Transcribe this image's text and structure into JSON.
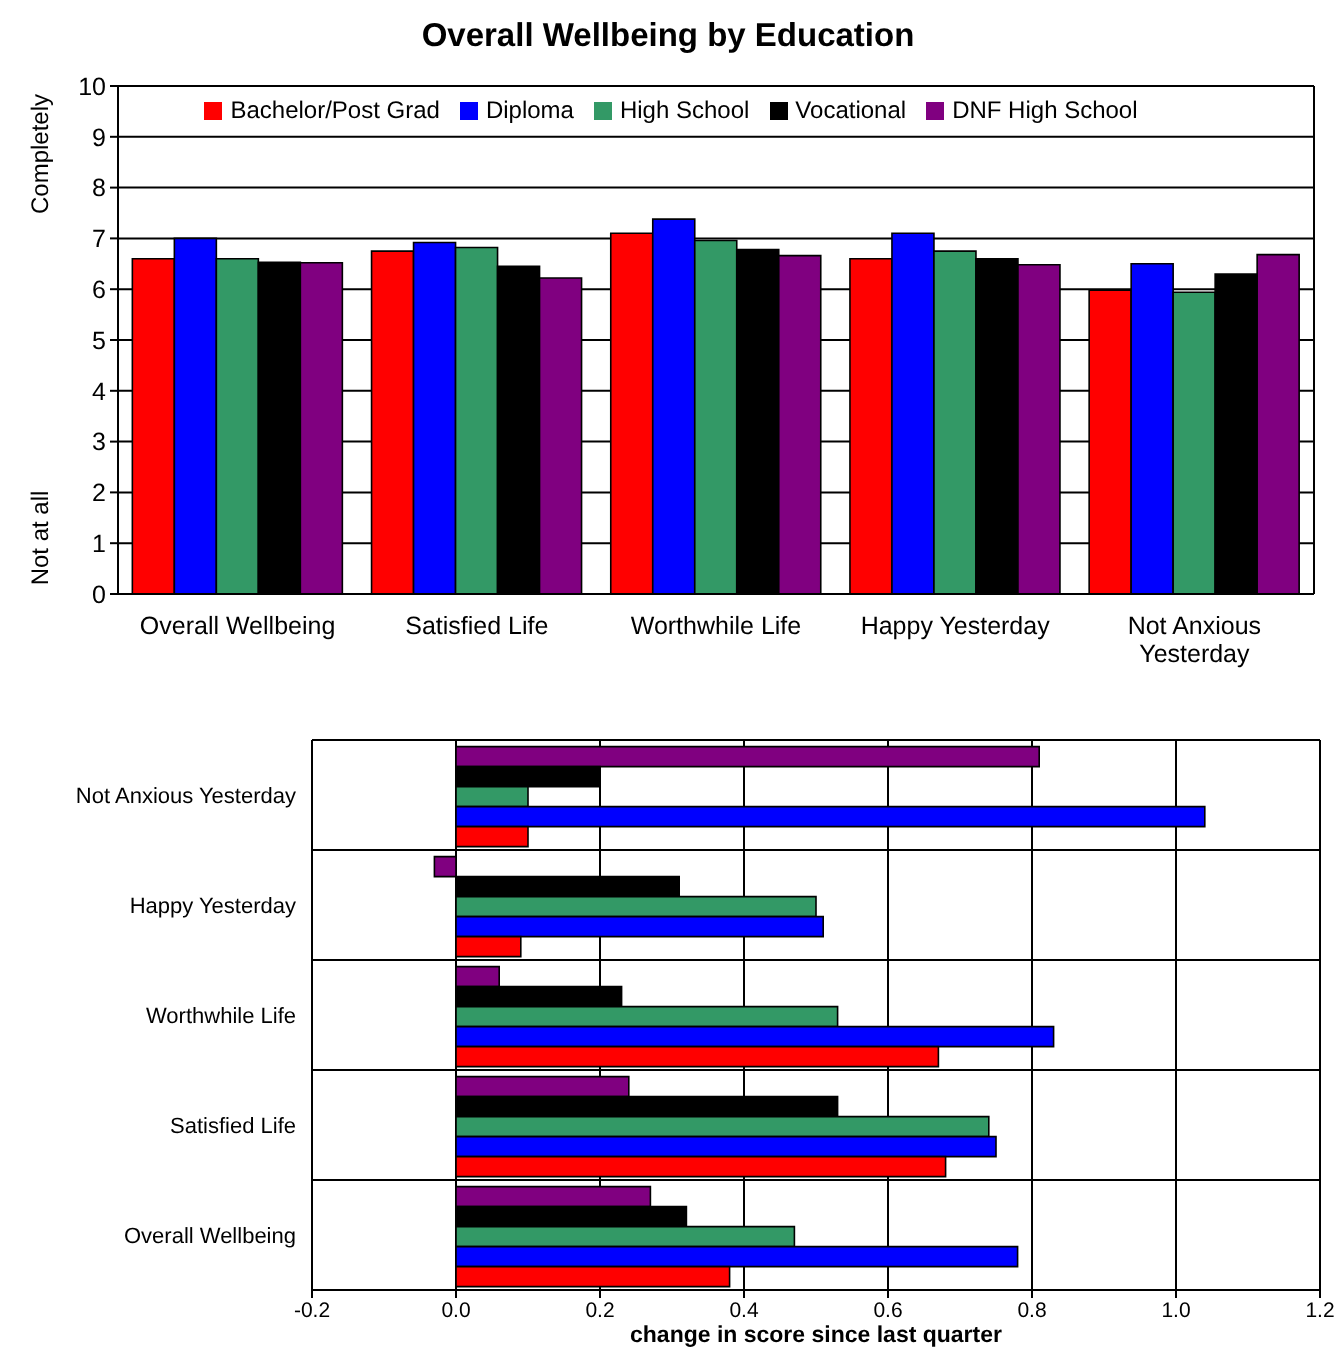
{
  "chart_data": [
    {
      "type": "bar",
      "title": "Overall Wellbeing by Education",
      "categories": [
        "Overall Wellbeing",
        "Satisfied Life",
        "Worthwhile Life",
        "Happy Yesterday",
        "Not Anxious Yesterday"
      ],
      "series": [
        {
          "name": "Bachelor/Post Grad",
          "color": "#ff0000",
          "values": [
            6.6,
            6.75,
            7.1,
            6.6,
            5.98
          ]
        },
        {
          "name": "Diploma",
          "color": "#0000ff",
          "values": [
            7.0,
            6.92,
            7.38,
            7.1,
            6.5
          ]
        },
        {
          "name": "High School",
          "color": "#339966",
          "values": [
            6.6,
            6.82,
            6.96,
            6.75,
            5.94
          ]
        },
        {
          "name": "Vocational",
          "color": "#000000",
          "values": [
            6.53,
            6.45,
            6.78,
            6.6,
            6.3
          ]
        },
        {
          "name": "DNF High School",
          "color": "#800080",
          "values": [
            6.52,
            6.22,
            6.66,
            6.48,
            6.68
          ]
        }
      ],
      "ylim": [
        0,
        10
      ],
      "yticks": [
        0,
        1,
        2,
        3,
        4,
        5,
        6,
        7,
        8,
        9,
        10
      ],
      "grid": "y",
      "legend": "top",
      "annotations": [
        "Completely",
        "Not at all"
      ]
    },
    {
      "type": "bar",
      "orientation": "horizontal",
      "xlabel": "change in score since last quarter",
      "categories": [
        "Not Anxious Yesterday",
        "Happy Yesterday",
        "Worthwhile Life",
        "Satisfied Life",
        "Overall Wellbeing"
      ],
      "series": [
        {
          "color": "#ff0000",
          "values": [
            0.1,
            0.09,
            0.67,
            0.68,
            0.38
          ]
        },
        {
          "color": "#0000ff",
          "values": [
            1.04,
            0.51,
            0.83,
            0.75,
            0.78
          ]
        },
        {
          "color": "#339966",
          "values": [
            0.1,
            0.5,
            0.53,
            0.74,
            0.47
          ]
        },
        {
          "color": "#000000",
          "values": [
            0.2,
            0.31,
            0.23,
            0.53,
            0.32
          ]
        },
        {
          "color": "#800080",
          "values": [
            0.81,
            -0.03,
            0.06,
            0.24,
            0.27
          ]
        }
      ],
      "xlim": [
        -0.2,
        1.2
      ],
      "xticks": [
        -0.2,
        {
          "value": 0,
          "label": "0.0"
        },
        0.2,
        0.4,
        0.6,
        0.8,
        {
          "value": 1,
          "label": "1.0"
        },
        1.2
      ],
      "grid": true
    }
  ]
}
